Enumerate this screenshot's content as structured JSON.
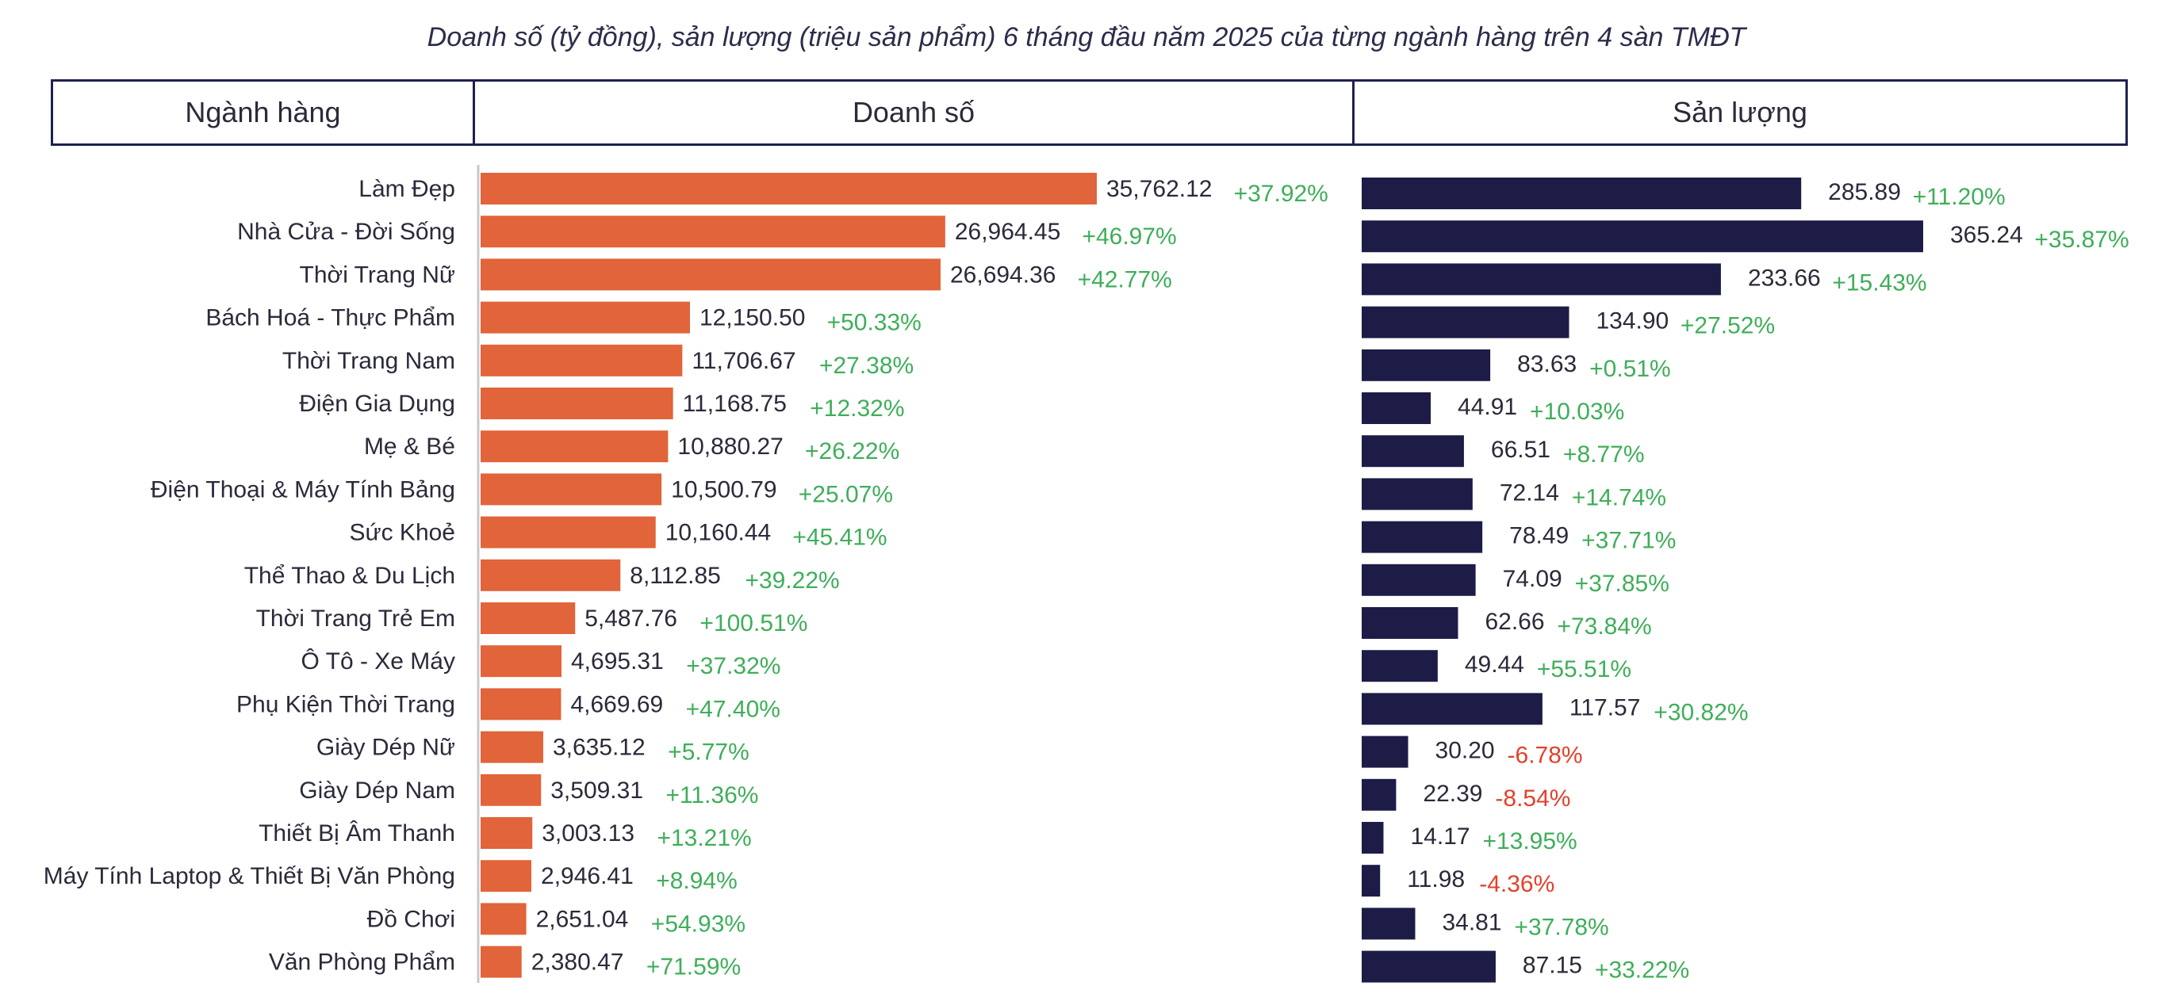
{
  "chart_data": {
    "type": "bar",
    "title": "Doanh số (tỷ đồng), sản lượng (triệu sản phẩm) 6 tháng đầu năm 2025 của từng ngành hàng trên 4 sàn TMĐT",
    "headers": {
      "category": "Ngành hàng",
      "revenue": "Doanh số",
      "volume": "Sản lượng"
    },
    "colors": {
      "revenue": "#e1643a",
      "volume": "#1d1c47",
      "positive": "#3fae5a",
      "negative": "#e2412b"
    },
    "categories": [
      "Làm Đẹp",
      "Nhà Cửa - Đời Sống",
      "Thời Trang Nữ",
      "Bách Hoá - Thực Phẩm",
      "Thời Trang Nam",
      "Điện Gia Dụng",
      "Mẹ & Bé",
      "Điện Thoại & Máy Tính Bảng",
      "Sức Khoẻ",
      "Thể Thao & Du Lịch",
      "Thời Trang Trẻ Em",
      "Ô Tô - Xe Máy",
      "Phụ Kiện Thời Trang",
      "Giày Dép Nữ",
      "Giày Dép Nam",
      "Thiết Bị Âm Thanh",
      "Máy Tính  Laptop & Thiết Bị Văn Phòng",
      "Đồ Chơi",
      "Văn Phòng Phẩm"
    ],
    "series": [
      {
        "name": "Doanh số",
        "values": [
          35762.12,
          26964.45,
          26694.36,
          12150.5,
          11706.67,
          11168.75,
          10880.27,
          10500.79,
          10160.44,
          8112.85,
          5487.76,
          4695.31,
          4669.69,
          3635.12,
          3509.31,
          3003.13,
          2946.41,
          2651.04,
          2380.47
        ],
        "value_labels": [
          "35,762.12",
          "26,964.45",
          "26,694.36",
          "12,150.50",
          "11,706.67",
          "11,168.75",
          "10,880.27",
          "10,500.79",
          "10,160.44",
          "8,112.85",
          "5,487.76",
          "4,695.31",
          "4,669.69",
          "3,635.12",
          "3,509.31",
          "3,003.13",
          "2,946.41",
          "2,651.04",
          "2,380.47"
        ],
        "growth_labels": [
          "+37.92%",
          "+46.97%",
          "+42.77%",
          "+50.33%",
          "+27.38%",
          "+12.32%",
          "+26.22%",
          "+25.07%",
          "+45.41%",
          "+39.22%",
          "+100.51%",
          "+37.32%",
          "+47.40%",
          "+5.77%",
          "+11.36%",
          "+13.21%",
          "+8.94%",
          "+54.93%",
          "+71.59%"
        ]
      },
      {
        "name": "Sản lượng",
        "values": [
          285.89,
          365.24,
          233.66,
          134.9,
          83.63,
          44.91,
          66.51,
          72.14,
          78.49,
          74.09,
          62.66,
          49.44,
          117.57,
          30.2,
          22.39,
          14.17,
          11.98,
          34.81,
          87.15
        ],
        "value_labels": [
          "285.89",
          "365.24",
          "233.66",
          "134.90",
          "83.63",
          "44.91",
          "66.51",
          "72.14",
          "78.49",
          "74.09",
          "62.66",
          "49.44",
          "117.57",
          "30.20",
          "22.39",
          "14.17",
          "11.98",
          "34.81",
          "87.15"
        ],
        "growth_labels": [
          "+11.20%",
          "+35.87%",
          "+15.43%",
          "+27.52%",
          "+0.51%",
          "+10.03%",
          "+8.77%",
          "+14.74%",
          "+37.71%",
          "+37.85%",
          "+73.84%",
          "+55.51%",
          "+30.82%",
          "-6.78%",
          "-8.54%",
          "+13.95%",
          "-4.36%",
          "+37.78%",
          "+33.22%"
        ]
      }
    ]
  }
}
